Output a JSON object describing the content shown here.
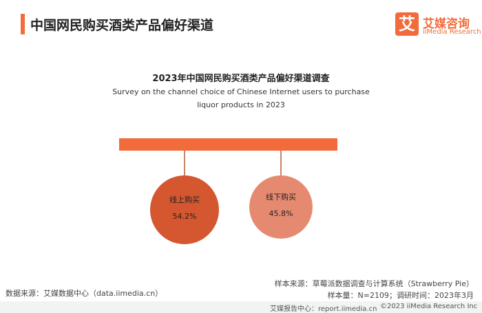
{
  "header": {
    "title": "中国网民购买酒类产品偏好渠道",
    "logo_mark": "艾",
    "logo_name": "艾媒咨询",
    "logo_en": "iiMedia Research"
  },
  "chart_data": {
    "type": "circle",
    "title": "2023年中国网民购买酒类产品偏好渠道调查",
    "subtitle": "Survey on the channel choice of Chinese Internet users to purchase liquor products in 2023",
    "categories": [
      "线上购买",
      "线下购买"
    ],
    "values": [
      54.2,
      45.8
    ],
    "value_labels": [
      "54.2%",
      "45.8%"
    ],
    "colors": [
      "#d4572f",
      "#e58a70"
    ],
    "bar_color": "#f26b3a"
  },
  "footer": {
    "data_source": "数据来源：艾媒数据中心（data.iimedia.cn）",
    "sample_source": "样本来源：草莓派数据调查与计算系统（Strawberry Pie）",
    "sample_info": "样本量：N=2109；调研时间：2023年3月",
    "report_center": "艾媒报告中心：report.iimedia.cn",
    "copyright": "©2023  iiMedia Research  Inc"
  }
}
